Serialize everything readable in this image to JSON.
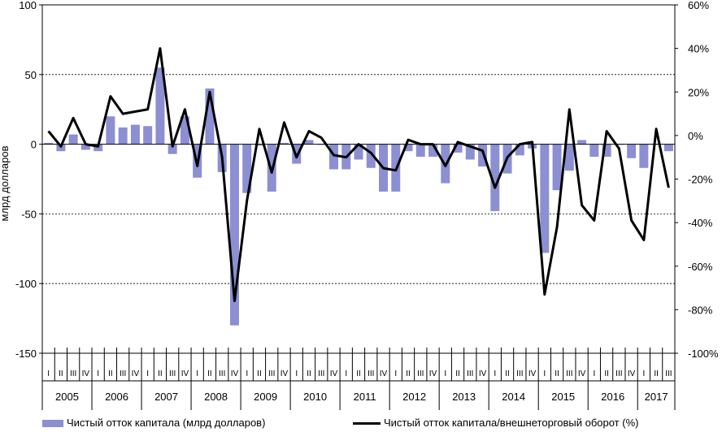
{
  "chart_data": {
    "type": "bar+line",
    "title": "",
    "ylabel": "млрд долларов",
    "y_left": {
      "lim": [
        -150,
        100
      ],
      "ticks": [
        100,
        50,
        0,
        -50,
        -100,
        -150
      ]
    },
    "y_right": {
      "lim": [
        -100,
        60
      ],
      "ticks": [
        "60%",
        "40%",
        "20%",
        "0%",
        "-20%",
        "-40%",
        "-60%",
        "-80%",
        "-100%"
      ],
      "tick_values": [
        60,
        40,
        20,
        0,
        -20,
        -40,
        -60,
        -80,
        -100
      ]
    },
    "grid_dashed_at": [
      50,
      -50,
      -100
    ],
    "years": [
      "2005",
      "2006",
      "2007",
      "2008",
      "2009",
      "2010",
      "2011",
      "2012",
      "2013",
      "2014",
      "2015",
      "2016",
      "2017"
    ],
    "quarters": [
      "I",
      "II",
      "III",
      "IV"
    ],
    "quarter_count": 51,
    "series": [
      {
        "name": "Чистый отток капитала (млрд долларов)",
        "type": "bar",
        "color": "#8c8fd2",
        "values": [
          1,
          -5,
          7,
          -4,
          -5,
          20,
          12,
          14,
          13,
          55,
          -7,
          20,
          -24,
          40,
          -20,
          -130,
          -35,
          -1,
          -34,
          1,
          -14,
          3,
          0,
          -18,
          -18,
          -11,
          -17,
          -34,
          -34,
          -5,
          -9,
          -9,
          -28,
          -6,
          -11,
          -16,
          -48,
          -21,
          -8,
          -3,
          -78,
          -33,
          -19,
          3,
          -9,
          -9,
          0,
          -10,
          -17,
          0,
          -5
        ]
      },
      {
        "name": "Чистый отток капитала/внешнеторговый оборот (%)",
        "type": "line",
        "color": "#000000",
        "values": [
          2,
          -5,
          8,
          -4,
          -5,
          18,
          10,
          11,
          12,
          40,
          -5,
          12,
          -14,
          20,
          -10,
          -76,
          -30,
          3,
          -17,
          6,
          -10,
          2,
          -1,
          -9,
          -10,
          -4,
          -8,
          -15,
          -16,
          -2,
          -4,
          -4,
          -14,
          -3,
          -5,
          -7,
          -24,
          -10,
          -4,
          -3,
          -73,
          -42,
          12,
          -32,
          -39,
          2,
          -6,
          -39,
          -48,
          3,
          -24
        ]
      }
    ]
  }
}
